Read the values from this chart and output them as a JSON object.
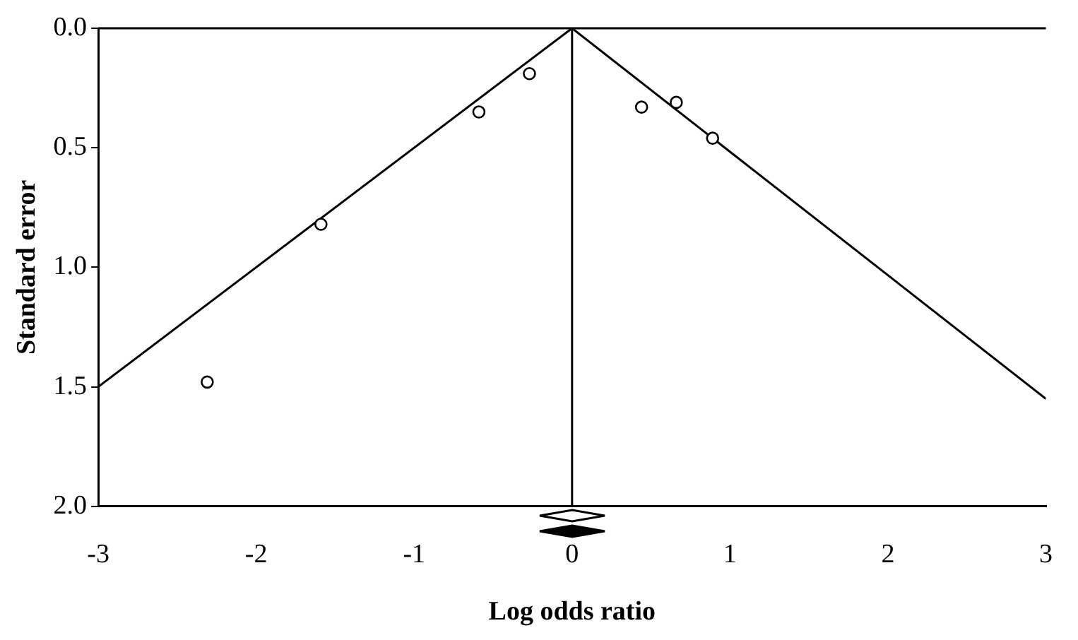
{
  "chart_data": {
    "type": "scatter",
    "xlabel": "Log odds ratio",
    "ylabel": "Standard error",
    "xlim": [
      -3,
      3
    ],
    "ylim": [
      2,
      0
    ],
    "xticks": [
      -3,
      -2,
      -1,
      0,
      1,
      2,
      3
    ],
    "yticks": [
      {
        "value": 0,
        "label": "0.0"
      },
      {
        "value": 0.5,
        "label": "0.5"
      },
      {
        "value": 1,
        "label": "1.0"
      },
      {
        "value": 1.5,
        "label": "1.5"
      },
      {
        "value": 2,
        "label": "2.0"
      }
    ],
    "grid": false,
    "marker": "circle",
    "series": [
      {
        "type": "scatter",
        "color": "#000000",
        "x": [
          -2.31,
          -1.59,
          -0.59,
          -0.27,
          0.44,
          0.66,
          0.89
        ],
        "values": [
          1.48,
          0.82,
          0.35,
          0.19,
          0.33,
          0.31,
          0.46
        ]
      },
      {
        "type": "line",
        "color": "#000000",
        "marker": "none",
        "x": [
          -3,
          0
        ],
        "values": [
          1.5,
          0
        ]
      },
      {
        "type": "line",
        "color": "#000000",
        "marker": "none",
        "x": [
          0,
          3
        ],
        "values": [
          0,
          1.55
        ]
      }
    ],
    "ref_lines": [
      {
        "axis": "x",
        "value": 0,
        "color": "#000000"
      }
    ]
  }
}
